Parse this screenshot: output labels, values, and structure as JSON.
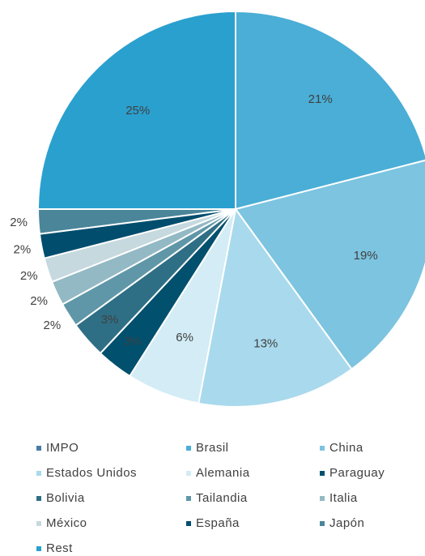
{
  "chart_data": {
    "type": "pie",
    "categories": [
      "IMPO",
      "Brasil",
      "China",
      "Estados Unidos",
      "Alemania",
      "Paraguay",
      "Bolivia",
      "Tailandia",
      "Italia",
      "México",
      "España",
      "Japón",
      "Rest"
    ],
    "values": [
      0,
      21,
      19,
      13,
      6,
      3,
      3,
      2,
      2,
      2,
      2,
      2,
      25
    ],
    "value_labels": [
      null,
      "21%",
      "19%",
      "13%",
      "6%",
      "3%",
      "3%",
      "2%",
      "2%",
      "2%",
      "2%",
      "2%",
      "25%"
    ],
    "colors": [
      "#4a7aa8",
      "#4aaed6",
      "#7cc4e0",
      "#a9d9ec",
      "#d3ecf5",
      "#00506e",
      "#2f6f85",
      "#5f97a8",
      "#93b9c4",
      "#c5d9df",
      "#004d6e",
      "#4a8599",
      "#2aa0cf"
    ],
    "legend": "bottom"
  }
}
